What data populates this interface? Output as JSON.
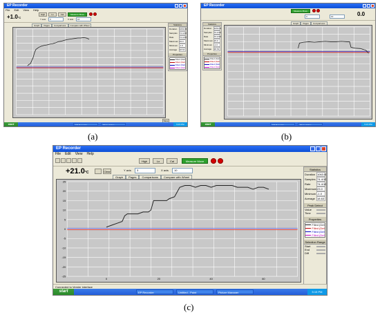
{
  "captions": {
    "a": "(a)",
    "b": "(b)",
    "c": "(c)"
  },
  "window": {
    "title": "EP Recorder",
    "menu": [
      "File",
      "Edit",
      "View",
      "Help"
    ],
    "readout_a": "+1.0",
    "readout_b": "0.0",
    "readout_c": "+21.0",
    "readout_unit": "°C",
    "toolbar_buttons": [
      "High",
      "Lo",
      "Cal"
    ],
    "green_button": "Measure Move",
    "field_x_label": "Y axis",
    "field_x_value": "3",
    "field_y_label": "X axis",
    "field_y_value": "10",
    "tabs": [
      "Graph",
      "Pages",
      "Comparisons",
      "Compare with Wheel"
    ],
    "action_button": "Clear",
    "side_button": "Save"
  },
  "statistics": {
    "title": "Statistics",
    "rows": [
      {
        "label": "Duration",
        "value": "1063.00"
      },
      {
        "label": "Samples",
        "value": "74.4/10"
      },
      {
        "label": "Rate",
        "value": "74.4/10"
      },
      {
        "label": "Maximum",
        "value": "23.0"
      },
      {
        "label": "Minimum",
        "value": "-1.0"
      },
      {
        "label": "Average",
        "value": "18.63"
      }
    ]
  },
  "peak": {
    "title": "Peak Detect",
    "rows": [
      {
        "label": "Value",
        "value": ""
      },
      {
        "label": "Time",
        "value": ""
      }
    ]
  },
  "legend": {
    "title": "Properties",
    "entries": [
      {
        "label": "Filled (Default)",
        "color": "#1a1a1a"
      },
      {
        "label": "Filled (Default)",
        "color": "#c00000"
      },
      {
        "label": "Filled (Default)",
        "color": "#0000c0"
      },
      {
        "label": "Filled (Default)",
        "color": "#c000c0"
      }
    ]
  },
  "selection": {
    "title": "Selection Range",
    "rows": [
      {
        "label": "Start",
        "value": ""
      },
      {
        "label": "End",
        "value": ""
      },
      {
        "label": "Diff",
        "value": ""
      }
    ]
  },
  "taskbar": {
    "start": "start",
    "items_a": [
      "EP Recorder",
      "Photo Editor"
    ],
    "items_c": [
      "EP Recorder",
      "Untitled - Paint",
      "Picture Manager"
    ],
    "clock": "5:15 PM"
  },
  "status_c": "Connected to Vernier interface",
  "colors": {
    "plot_bg": "#c8c8c8",
    "grid": "#ffffff",
    "trace": "#222222",
    "red_line": "#d00000",
    "blue_line": "#3030d0"
  },
  "chart_data": [
    {
      "type": "line",
      "title": "",
      "x": [
        8,
        9,
        10,
        11,
        12,
        13,
        14,
        16,
        18,
        20,
        22,
        24,
        26,
        28,
        30,
        32,
        34,
        36,
        38,
        40,
        42,
        44,
        46,
        48,
        50,
        52
      ],
      "y": [
        0.0,
        0.3,
        0.5,
        1.2,
        2.0,
        3.2,
        4.0,
        4.5,
        4.8,
        5.0,
        5.1,
        5.3,
        5.4,
        5.6,
        5.9,
        6.0,
        6.2,
        6.4,
        6.5,
        6.6,
        6.7,
        6.8,
        6.8,
        6.9,
        6.8,
        6.5
      ],
      "xlim": [
        0,
        105
      ],
      "ylim": [
        -12,
        9
      ],
      "red_level": -0.5,
      "blue_level": -0.3
    },
    {
      "type": "line",
      "title": "",
      "x": [
        52,
        53,
        56,
        60,
        64,
        68,
        72,
        76,
        80,
        84,
        88,
        90,
        91,
        94,
        98,
        102,
        104
      ],
      "y": [
        4.0,
        5.2,
        5.4,
        5.5,
        5.4,
        5.5,
        5.6,
        5.5,
        5.5,
        5.6,
        5.5,
        5.5,
        4.2,
        4.0,
        3.9,
        3.5,
        2.8
      ],
      "xlim": [
        0,
        105
      ],
      "ylim": [
        -12,
        9
      ],
      "red_level": 3.0,
      "blue_level": 3.2
    },
    {
      "type": "line",
      "title": "",
      "x": [
        0,
        2,
        4,
        6,
        7,
        8,
        10,
        12,
        14,
        16,
        17,
        18,
        20,
        22,
        23,
        24,
        26,
        28,
        30,
        32,
        34,
        36,
        38,
        40,
        42,
        44,
        46,
        48,
        50,
        52,
        54,
        56,
        58,
        60,
        62
      ],
      "y": [
        1,
        2,
        3,
        4,
        7,
        8,
        8,
        8,
        9,
        9,
        10,
        15,
        15,
        15,
        15,
        16,
        17,
        22,
        23,
        23,
        22,
        23,
        23,
        22,
        23,
        23,
        23,
        23,
        22,
        22,
        22,
        21,
        22,
        22,
        21
      ],
      "xlim": [
        -15,
        73
      ],
      "ylim": [
        -25,
        25
      ],
      "xticks": [
        0,
        20,
        40,
        60
      ],
      "yticks": [
        -25,
        -20,
        -15,
        -10,
        -5,
        0,
        5,
        10,
        15,
        20,
        25
      ],
      "red_level": -0.3,
      "blue_level": 0.3
    }
  ]
}
